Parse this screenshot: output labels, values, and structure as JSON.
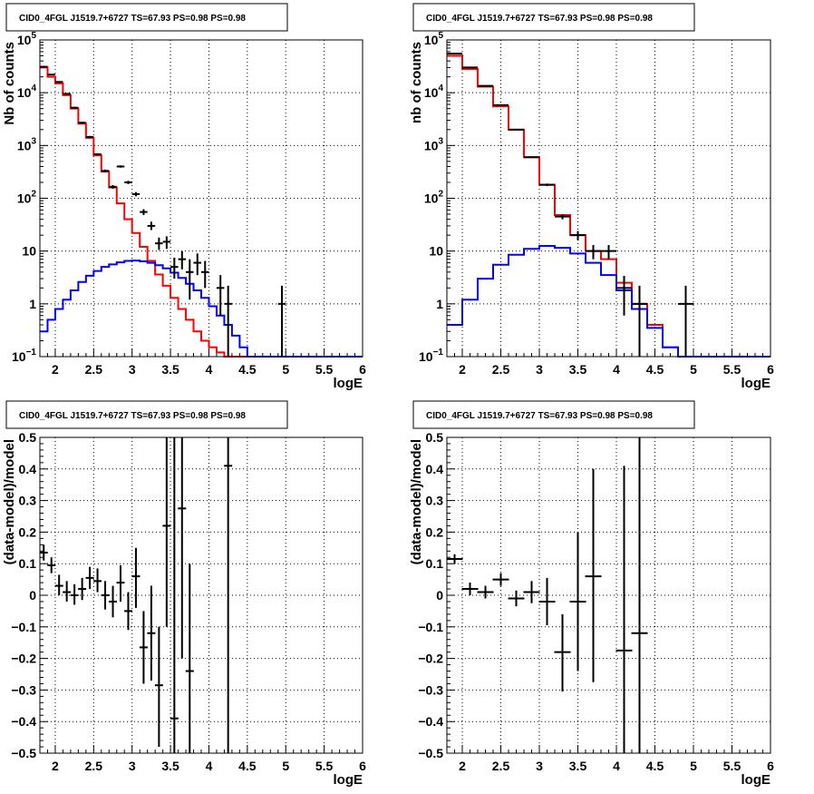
{
  "chart_data": [
    {
      "id": "counts-left",
      "type": "histogram",
      "title": "CID0_4FGL J1519.7+6727 TS=67.93 PS=0.98 PS=0.98",
      "xlabel": "logE",
      "ylabel": "Nb of counts",
      "xlim": [
        1.8,
        6
      ],
      "ylim": [
        0.1,
        100000
      ],
      "ylog": true,
      "grid": true,
      "xticks": [
        "2",
        "2.5",
        "3",
        "3.5",
        "4",
        "4.5",
        "5",
        "5.5",
        "6"
      ],
      "yticks": [
        {
          "v": 0.1,
          "base": "10",
          "exp": "−1"
        },
        {
          "v": 1,
          "label": "1"
        },
        {
          "v": 10,
          "label": "10"
        },
        {
          "v": 100,
          "base": "10",
          "exp": "2"
        },
        {
          "v": 1000,
          "base": "10",
          "exp": "3"
        },
        {
          "v": 10000,
          "base": "10",
          "exp": "4"
        },
        {
          "v": 100000,
          "base": "10",
          "exp": "5"
        }
      ],
      "bins": [
        1.8,
        1.9,
        2.0,
        2.1,
        2.2,
        2.3,
        2.4,
        2.5,
        2.6,
        2.7,
        2.8,
        2.9,
        3.0,
        3.1,
        3.2,
        3.3,
        3.4,
        3.5,
        3.6,
        3.7,
        3.8,
        3.9,
        4.0,
        4.1,
        4.2,
        4.3,
        4.4,
        4.5,
        4.6,
        4.7,
        4.8,
        4.9,
        5.0,
        5.1,
        5.2,
        5.3,
        5.4,
        5.5,
        5.6,
        5.7,
        5.8,
        5.9,
        6.0
      ],
      "series": [
        {
          "color": "#ff0000",
          "values": [
            30000,
            20000,
            15000,
            9000,
            5000,
            2600,
            1400,
            650,
            320,
            160,
            80,
            40,
            22,
            12,
            6.5,
            3.6,
            2.2,
            1.3,
            0.8,
            0.5,
            0.3,
            0.2,
            0.15,
            0.12,
            0.1,
            0.1,
            0.1,
            0.1,
            0.1,
            0.1,
            0.1,
            0.1,
            0.1,
            0.1,
            0.1,
            0.1,
            0.1,
            0.1,
            0.1,
            0.1,
            0.1,
            0.1
          ]
        },
        {
          "color": "#0000ff",
          "values": [
            0.3,
            0.5,
            0.8,
            1.2,
            1.8,
            2.6,
            3.4,
            4.2,
            5.0,
            5.6,
            6.1,
            6.5,
            6.6,
            6.4,
            6.0,
            5.4,
            4.7,
            3.9,
            3.1,
            2.4,
            1.8,
            1.3,
            0.9,
            0.6,
            0.4,
            0.25,
            0.15,
            0.1,
            0.1,
            0.1,
            0.1,
            0.1,
            0.1,
            0.1,
            0.1,
            0.1,
            0.1,
            0.1,
            0.1,
            0.1,
            0.1,
            0.1
          ]
        }
      ],
      "points": [
        {
          "x": 1.85,
          "y": 31000,
          "lo": 30000,
          "hi": 32000
        },
        {
          "x": 1.95,
          "y": 22000,
          "lo": 21500,
          "hi": 22500
        },
        {
          "x": 2.05,
          "y": 16000,
          "lo": 15500,
          "hi": 16500
        },
        {
          "x": 2.15,
          "y": 9500,
          "lo": 9200,
          "hi": 9800
        },
        {
          "x": 2.25,
          "y": 5200,
          "lo": 5000,
          "hi": 5400
        },
        {
          "x": 2.35,
          "y": 2700,
          "lo": 2600,
          "hi": 2800
        },
        {
          "x": 2.45,
          "y": 1450,
          "lo": 1380,
          "hi": 1520
        },
        {
          "x": 2.55,
          "y": 680,
          "lo": 650,
          "hi": 710
        },
        {
          "x": 2.65,
          "y": 330,
          "lo": 310,
          "hi": 350
        },
        {
          "x": 2.75,
          "y": 165,
          "lo": 152,
          "hi": 178
        },
        {
          "x": 2.85,
          "y": 400,
          "lo": 380,
          "hi": 420
        },
        {
          "x": 2.95,
          "y": 200,
          "lo": 186,
          "hi": 214
        },
        {
          "x": 3.05,
          "y": 120,
          "lo": 109,
          "hi": 131
        },
        {
          "x": 3.15,
          "y": 55,
          "lo": 48,
          "hi": 62
        },
        {
          "x": 3.25,
          "y": 30,
          "lo": 25,
          "hi": 36
        },
        {
          "x": 3.35,
          "y": 14,
          "lo": 10.5,
          "hi": 18
        },
        {
          "x": 3.45,
          "y": 15,
          "lo": 11,
          "hi": 19
        },
        {
          "x": 3.55,
          "y": 5,
          "lo": 3,
          "hi": 7.5
        },
        {
          "x": 3.65,
          "y": 7,
          "lo": 4.5,
          "hi": 10
        },
        {
          "x": 3.75,
          "y": 4,
          "lo": 1.2,
          "hi": 7
        },
        {
          "x": 3.85,
          "y": 6,
          "lo": 3.5,
          "hi": 9
        },
        {
          "x": 3.95,
          "y": 4,
          "lo": 2,
          "hi": 6.5
        },
        {
          "x": 4.15,
          "y": 2,
          "lo": 0.6,
          "hi": 3.5
        },
        {
          "x": 4.25,
          "y": 1,
          "lo": 0.1,
          "hi": 2.2
        },
        {
          "x": 4.95,
          "y": 1,
          "lo": 0.1,
          "hi": 2.2
        }
      ]
    },
    {
      "id": "counts-right",
      "type": "histogram",
      "title": "CID0_4FGL J1519.7+6727 TS=67.93 PS=0.98 PS=0.98",
      "xlabel": "logE",
      "ylabel": "nb of counts",
      "xlim": [
        1.8,
        6
      ],
      "ylim": [
        0.1,
        100000
      ],
      "ylog": true,
      "grid": true,
      "xticks": [
        "2",
        "2.5",
        "3",
        "3.5",
        "4",
        "4.5",
        "5",
        "5.5",
        "6"
      ],
      "yticks": [
        {
          "v": 0.1,
          "base": "10",
          "exp": "−1"
        },
        {
          "v": 1,
          "label": "1"
        },
        {
          "v": 10,
          "label": "10"
        },
        {
          "v": 100,
          "base": "10",
          "exp": "2"
        },
        {
          "v": 1000,
          "base": "10",
          "exp": "3"
        },
        {
          "v": 10000,
          "base": "10",
          "exp": "4"
        },
        {
          "v": 100000,
          "base": "10",
          "exp": "5"
        }
      ],
      "bins": [
        1.8,
        2.0,
        2.2,
        2.4,
        2.6,
        2.8,
        3.0,
        3.2,
        3.4,
        3.6,
        3.8,
        4.0,
        4.2,
        4.4,
        4.6,
        4.8,
        5.0,
        5.2,
        5.4,
        5.6,
        5.8,
        6.0
      ],
      "series": [
        {
          "color": "#ff0000",
          "values": [
            50000,
            28000,
            13000,
            5500,
            2000,
            600,
            180,
            48,
            20,
            10,
            7,
            2.5,
            1.0,
            0.4,
            0.15,
            0.1,
            0.1,
            0.1,
            0.1,
            0.1,
            0.1
          ]
        },
        {
          "color": "#0000ff",
          "values": [
            0.4,
            1.2,
            3.0,
            5.5,
            8.5,
            11,
            12.5,
            11.5,
            9,
            6,
            3.5,
            1.8,
            0.8,
            0.35,
            0.15,
            0.1,
            0.1,
            0.1,
            0.1,
            0.1,
            0.1
          ]
        }
      ],
      "points": [
        {
          "x": 1.9,
          "y": 55000,
          "lo": 54000,
          "hi": 56000
        },
        {
          "x": 2.1,
          "y": 30000,
          "lo": 29500,
          "hi": 30500
        },
        {
          "x": 2.3,
          "y": 13500,
          "lo": 13200,
          "hi": 13800
        },
        {
          "x": 2.5,
          "y": 5800,
          "lo": 5700,
          "hi": 5900
        },
        {
          "x": 2.7,
          "y": 2000,
          "lo": 1950,
          "hi": 2050
        },
        {
          "x": 2.9,
          "y": 600,
          "lo": 580,
          "hi": 620
        },
        {
          "x": 3.1,
          "y": 180,
          "lo": 170,
          "hi": 190
        },
        {
          "x": 3.3,
          "y": 45,
          "lo": 40,
          "hi": 50
        },
        {
          "x": 3.5,
          "y": 20,
          "lo": 16,
          "hi": 24
        },
        {
          "x": 3.7,
          "y": 10,
          "lo": 7,
          "hi": 13
        },
        {
          "x": 3.9,
          "y": 10,
          "lo": 7,
          "hi": 13
        },
        {
          "x": 4.1,
          "y": 2,
          "lo": 0.6,
          "hi": 3.4
        },
        {
          "x": 4.3,
          "y": 1,
          "lo": 0.1,
          "hi": 2.2
        },
        {
          "x": 4.9,
          "y": 1,
          "lo": 0.1,
          "hi": 2.2
        }
      ]
    },
    {
      "id": "residual-left",
      "type": "scatter",
      "title": "CID0_4FGL J1519.7+6727 TS=67.93 PS=0.98 PS=0.98",
      "xlabel": "logE",
      "ylabel": "(data-model)/model",
      "xlim": [
        1.8,
        6
      ],
      "ylim": [
        -0.5,
        0.5
      ],
      "ylog": false,
      "grid": true,
      "xticks": [
        "2",
        "2.5",
        "3",
        "3.5",
        "4",
        "4.5",
        "5",
        "5.5",
        "6"
      ],
      "yticks": [
        {
          "v": -0.5,
          "label": "−0.5"
        },
        {
          "v": -0.4,
          "label": "−0.4"
        },
        {
          "v": -0.3,
          "label": "−0.3"
        },
        {
          "v": -0.2,
          "label": "−0.2"
        },
        {
          "v": -0.1,
          "label": "−0.1"
        },
        {
          "v": 0,
          "label": "0"
        },
        {
          "v": 0.1,
          "label": "0.1"
        },
        {
          "v": 0.2,
          "label": "0.2"
        },
        {
          "v": 0.3,
          "label": "0.3"
        },
        {
          "v": 0.4,
          "label": "0.4"
        },
        {
          "v": 0.5,
          "label": "0.5"
        }
      ],
      "points": [
        {
          "x": 1.85,
          "y": 0.135,
          "lo": 0.11,
          "hi": 0.16
        },
        {
          "x": 1.95,
          "y": 0.095,
          "lo": 0.07,
          "hi": 0.12
        },
        {
          "x": 2.05,
          "y": 0.03,
          "lo": 0.0,
          "hi": 0.065
        },
        {
          "x": 2.15,
          "y": 0.01,
          "lo": -0.02,
          "hi": 0.045
        },
        {
          "x": 2.25,
          "y": 0.0,
          "lo": -0.03,
          "hi": 0.035
        },
        {
          "x": 2.35,
          "y": 0.02,
          "lo": -0.015,
          "hi": 0.055
        },
        {
          "x": 2.45,
          "y": 0.055,
          "lo": 0.02,
          "hi": 0.09
        },
        {
          "x": 2.55,
          "y": 0.045,
          "lo": 0.01,
          "hi": 0.085
        },
        {
          "x": 2.65,
          "y": 0.0,
          "lo": -0.045,
          "hi": 0.045
        },
        {
          "x": 2.75,
          "y": -0.02,
          "lo": -0.07,
          "hi": 0.03
        },
        {
          "x": 2.85,
          "y": 0.04,
          "lo": -0.02,
          "hi": 0.095
        },
        {
          "x": 2.95,
          "y": -0.05,
          "lo": -0.11,
          "hi": 0.01
        },
        {
          "x": 3.05,
          "y": 0.06,
          "lo": -0.04,
          "hi": 0.15
        },
        {
          "x": 3.15,
          "y": -0.165,
          "lo": -0.28,
          "hi": -0.05
        },
        {
          "x": 3.25,
          "y": -0.12,
          "lo": -0.27,
          "hi": 0.03
        },
        {
          "x": 3.35,
          "y": -0.285,
          "lo": -0.48,
          "hi": -0.1
        },
        {
          "x": 3.45,
          "y": 0.22,
          "lo": -0.1,
          "hi": 0.5
        },
        {
          "x": 3.55,
          "y": -0.39,
          "lo": -0.5,
          "hi": 0.5
        },
        {
          "x": 3.65,
          "y": 0.275,
          "lo": -0.2,
          "hi": 0.5
        },
        {
          "x": 3.75,
          "y": -0.24,
          "lo": -0.5,
          "hi": 0.1
        },
        {
          "x": 4.25,
          "y": 0.41,
          "lo": -0.5,
          "hi": 0.5
        }
      ]
    },
    {
      "id": "residual-right",
      "type": "scatter",
      "title": "CID0_4FGL J1519.7+6727 TS=67.93 PS=0.98 PS=0.98",
      "xlabel": "logE",
      "ylabel": "(data-model)/model",
      "xlim": [
        1.8,
        6
      ],
      "ylim": [
        -0.5,
        0.5
      ],
      "ylog": false,
      "grid": true,
      "xticks": [
        "2",
        "2.5",
        "3",
        "3.5",
        "4",
        "4.5",
        "5",
        "5.5",
        "6"
      ],
      "yticks": [
        {
          "v": -0.5,
          "label": "−0.5"
        },
        {
          "v": -0.4,
          "label": "−0.4"
        },
        {
          "v": -0.3,
          "label": "−0.3"
        },
        {
          "v": -0.2,
          "label": "−0.2"
        },
        {
          "v": -0.1,
          "label": "−0.1"
        },
        {
          "v": 0,
          "label": "0"
        },
        {
          "v": 0.1,
          "label": "0.1"
        },
        {
          "v": 0.2,
          "label": "0.2"
        },
        {
          "v": 0.3,
          "label": "0.3"
        },
        {
          "v": 0.4,
          "label": "0.4"
        },
        {
          "v": 0.5,
          "label": "0.5"
        }
      ],
      "points": [
        {
          "x": 1.9,
          "y": 0.115,
          "lo": 0.1,
          "hi": 0.13
        },
        {
          "x": 2.1,
          "y": 0.02,
          "lo": 0.0,
          "hi": 0.04
        },
        {
          "x": 2.3,
          "y": 0.01,
          "lo": -0.01,
          "hi": 0.03
        },
        {
          "x": 2.5,
          "y": 0.05,
          "lo": 0.03,
          "hi": 0.07
        },
        {
          "x": 2.7,
          "y": -0.01,
          "lo": -0.035,
          "hi": 0.015
        },
        {
          "x": 2.9,
          "y": 0.01,
          "lo": -0.025,
          "hi": 0.045
        },
        {
          "x": 3.1,
          "y": -0.02,
          "lo": -0.095,
          "hi": 0.055
        },
        {
          "x": 3.3,
          "y": -0.18,
          "lo": -0.305,
          "hi": -0.06
        },
        {
          "x": 3.5,
          "y": -0.02,
          "lo": -0.24,
          "hi": 0.2
        },
        {
          "x": 3.7,
          "y": 0.06,
          "lo": -0.275,
          "hi": 0.4
        },
        {
          "x": 4.1,
          "y": -0.175,
          "lo": -0.5,
          "hi": 0.41
        },
        {
          "x": 4.3,
          "y": -0.12,
          "lo": -0.5,
          "hi": 0.5
        }
      ]
    }
  ]
}
